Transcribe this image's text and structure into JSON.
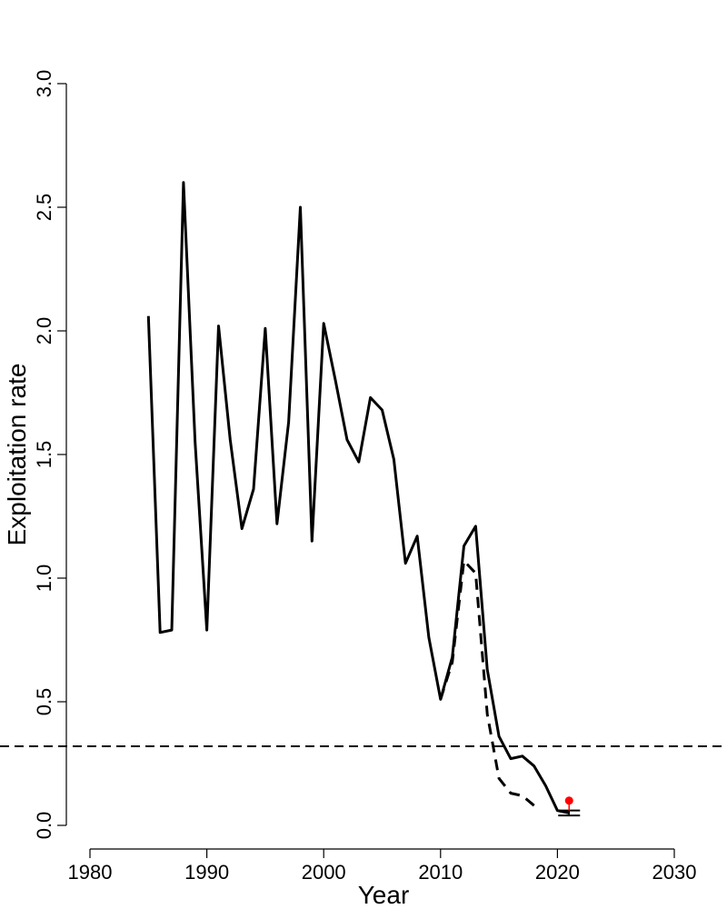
{
  "chart_data": {
    "type": "line",
    "xlabel": "Year",
    "ylabel": "Exploitation rate",
    "xlim": [
      1980,
      2030
    ],
    "ylim": [
      0,
      3
    ],
    "x_ticks": [
      1980,
      1990,
      2000,
      2010,
      2020,
      2030
    ],
    "y_ticks": [
      0,
      0.5,
      1,
      1.5,
      2,
      2.5,
      3
    ],
    "x_tick_labels": [
      "1980",
      "1990",
      "2000",
      "2010",
      "2020",
      "2030"
    ],
    "y_tick_labels": [
      "0.0",
      "0.5",
      "1.0",
      "1.5",
      "2.0",
      "2.5",
      "3.0"
    ],
    "grid": false,
    "series": [
      {
        "style": "solid",
        "color": "#000000",
        "x": [
          1985,
          1986,
          1987,
          1988,
          1989,
          1990,
          1991,
          1992,
          1993,
          1994,
          1995,
          1996,
          1997,
          1998,
          1999,
          2000,
          2001,
          2002,
          2003,
          2004,
          2005,
          2006,
          2007,
          2008,
          2009,
          2010,
          2011,
          2012,
          2013,
          2014,
          2015,
          2016,
          2017,
          2018,
          2019,
          2020,
          2021
        ],
        "y": [
          2.06,
          0.78,
          0.79,
          2.6,
          1.55,
          0.79,
          2.02,
          1.56,
          1.2,
          1.36,
          2.01,
          1.22,
          1.63,
          2.5,
          1.15,
          2.03,
          1.8,
          1.56,
          1.47,
          1.73,
          1.68,
          1.48,
          1.06,
          1.17,
          0.76,
          0.51,
          0.68,
          1.13,
          1.21,
          0.63,
          0.36,
          0.27,
          0.28,
          0.24,
          0.16,
          0.06,
          0.05
        ]
      },
      {
        "style": "dashed",
        "color": "#000000",
        "x": [
          2010,
          2011,
          2012,
          2013,
          2014,
          2015,
          2016,
          2017,
          2018
        ],
        "y": [
          0.51,
          0.66,
          1.07,
          1.02,
          0.45,
          0.19,
          0.13,
          0.12,
          0.08
        ]
      }
    ],
    "reference_line": {
      "y": 0.32,
      "style": "dashed",
      "color": "#000000"
    },
    "interval": {
      "x": 2021,
      "low": 0.04,
      "high": 0.06
    },
    "highlight_point": {
      "x": 2021,
      "y": 0.1,
      "color": "#ff0000"
    }
  }
}
